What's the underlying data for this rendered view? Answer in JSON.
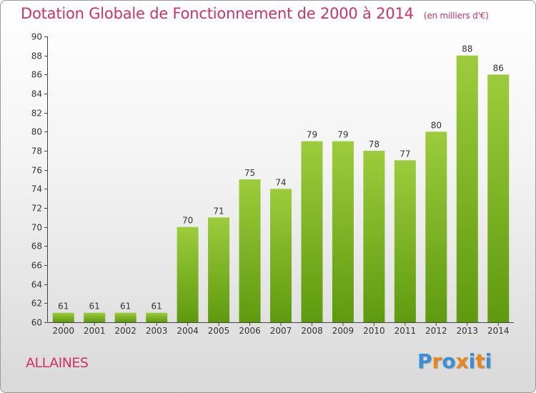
{
  "title": "Dotation Globale de Fonctionnement de 2000 à 2014",
  "unit_note": "(en milliers d'€)",
  "commune": "ALLAINES",
  "logo": {
    "text": "Proxiti",
    "colors": [
      "#3a8fd6",
      "#e8861a",
      "#3a8fd6",
      "#e8861a",
      "#3a8fd6",
      "#e8861a",
      "#3a8fd6"
    ]
  },
  "colors": {
    "title": "#cc3366",
    "bar_light": "#9ccc3c",
    "bar_dark": "#5f9a0e"
  },
  "chart_data": {
    "type": "bar",
    "categories": [
      "2000",
      "2001",
      "2002",
      "2003",
      "2004",
      "2005",
      "2006",
      "2007",
      "2008",
      "2009",
      "2010",
      "2011",
      "2012",
      "2013",
      "2014"
    ],
    "values": [
      61,
      61,
      61,
      61,
      70,
      71,
      75,
      74,
      79,
      79,
      78,
      77,
      80,
      88,
      86
    ],
    "ylim": [
      60,
      90
    ],
    "yticks": [
      60,
      62,
      64,
      66,
      68,
      70,
      72,
      74,
      76,
      78,
      80,
      82,
      84,
      86,
      88,
      90
    ],
    "grid": false,
    "legend": "none"
  }
}
